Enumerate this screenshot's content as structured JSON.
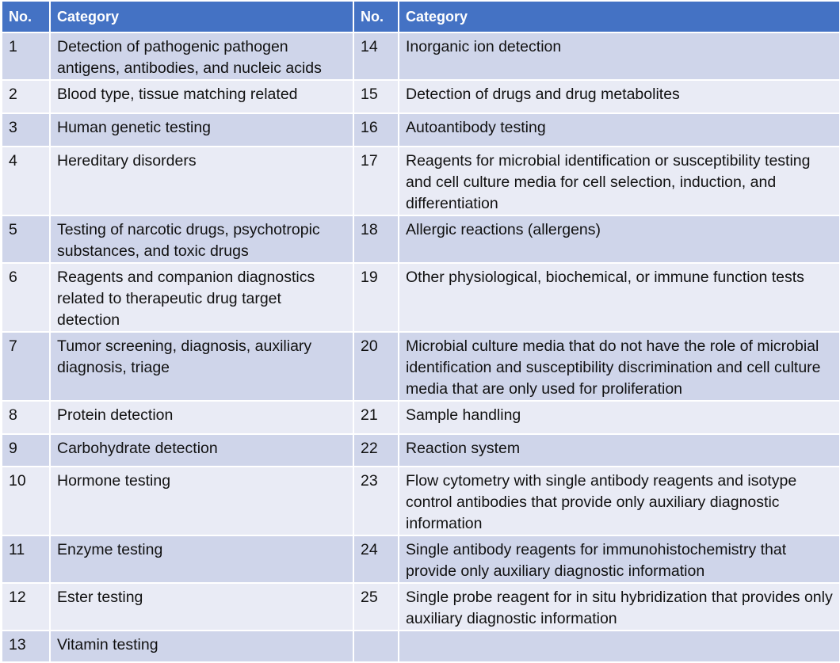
{
  "table": {
    "header": [
      "No.",
      "Category",
      "No.",
      "Category"
    ],
    "rows": [
      [
        1,
        "Detection of pathogenic pathogen antigens, antibodies, and nucleic acids",
        14,
        "Inorganic ion detection"
      ],
      [
        2,
        "Blood type, tissue matching related",
        15,
        "Detection of drugs and drug metabolites"
      ],
      [
        3,
        "Human genetic testing",
        16,
        "Autoantibody testing"
      ],
      [
        4,
        "Hereditary disorders",
        17,
        "Reagents for microbial identification or susceptibility testing and cell culture media for cell selection, induction, and differentiation"
      ],
      [
        5,
        "Testing of narcotic drugs, psychotropic substances, and toxic drugs",
        18,
        "Allergic reactions (allergens)"
      ],
      [
        6,
        "Reagents and companion diagnostics related to therapeutic drug target detection",
        19,
        "Other physiological, biochemical, or immune function tests"
      ],
      [
        7,
        "Tumor screening, diagnosis, auxiliary diagnosis, triage",
        20,
        "Microbial culture media that do not have the role of microbial identification and susceptibility discrimination and cell culture media that are only used for proliferation"
      ],
      [
        8,
        "Protein detection",
        21,
        "Sample handling"
      ],
      [
        9,
        "Carbohydrate detection",
        22,
        "Reaction system"
      ],
      [
        10,
        "Hormone testing",
        23,
        "Flow cytometry with single antibody reagents and isotype control antibodies that provide only auxiliary diagnostic information"
      ],
      [
        11,
        "Enzyme testing",
        24,
        "Single antibody reagents for immunohistochemistry that provide only auxiliary diagnostic information"
      ],
      [
        12,
        "Ester testing",
        25,
        "Single probe reagent for in situ hybridization that provides only auxiliary diagnostic information"
      ],
      [
        13,
        "Vitamin testing"
      ]
    ]
  }
}
